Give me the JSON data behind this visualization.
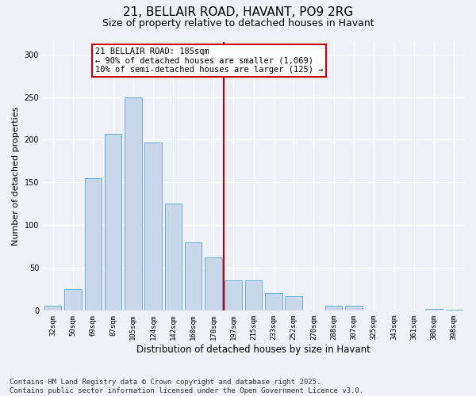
{
  "title": "21, BELLAIR ROAD, HAVANT, PO9 2RG",
  "subtitle": "Size of property relative to detached houses in Havant",
  "xlabel": "Distribution of detached houses by size in Havant",
  "ylabel": "Number of detached properties",
  "bar_color": "#c8d8ea",
  "bar_edge_color": "#6aacda",
  "background_color": "#eef2f8",
  "grid_color": "#ffffff",
  "categories": [
    "32sqm",
    "50sqm",
    "69sqm",
    "87sqm",
    "105sqm",
    "124sqm",
    "142sqm",
    "160sqm",
    "178sqm",
    "197sqm",
    "215sqm",
    "233sqm",
    "252sqm",
    "270sqm",
    "288sqm",
    "307sqm",
    "325sqm",
    "343sqm",
    "361sqm",
    "380sqm",
    "398sqm"
  ],
  "values": [
    5,
    25,
    155,
    207,
    250,
    197,
    125,
    80,
    62,
    35,
    35,
    20,
    17,
    0,
    5,
    5,
    0,
    0,
    0,
    2,
    1
  ],
  "vline_x": 8.5,
  "vline_color": "#cc0000",
  "annotation_line1": "21 BELLAIR ROAD: 185sqm",
  "annotation_line2": "← 90% of detached houses are smaller (1,069)",
  "annotation_line3": "10% of semi-detached houses are larger (125) →",
  "ylim": [
    0,
    315
  ],
  "yticks": [
    0,
    50,
    100,
    150,
    200,
    250,
    300
  ],
  "footer": "Contains HM Land Registry data © Crown copyright and database right 2025.\nContains public sector information licensed under the Open Government Licence v3.0.",
  "title_fontsize": 11,
  "subtitle_fontsize": 9,
  "annotation_fontsize": 7.5,
  "footer_fontsize": 6.5,
  "ylabel_fontsize": 8,
  "xlabel_fontsize": 8.5,
  "tick_fontsize": 6.5
}
